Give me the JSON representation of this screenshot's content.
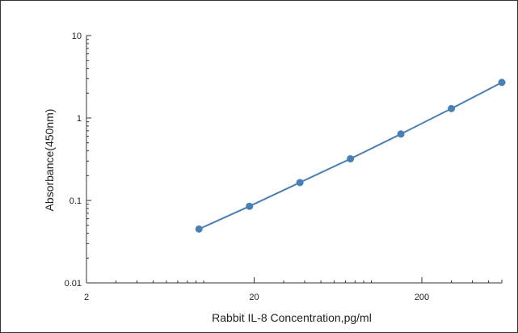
{
  "chart_data": {
    "type": "line",
    "title": "",
    "xlabel": "Rabbit IL-8 Concentration,pg/ml",
    "ylabel": "Absorbance(450nm)",
    "x_scale": "log",
    "y_scale": "log",
    "xlim": [
      2,
      600
    ],
    "ylim": [
      0.01,
      10
    ],
    "x_ticks": [
      {
        "value": 2,
        "label": "2"
      },
      {
        "value": 20,
        "label": "20"
      },
      {
        "value": 200,
        "label": "200"
      }
    ],
    "y_ticks": [
      {
        "value": 0.01,
        "label": "0.01"
      },
      {
        "value": 0.1,
        "label": "0.1"
      },
      {
        "value": 1,
        "label": "1"
      },
      {
        "value": 10,
        "label": "10"
      }
    ],
    "grid": false,
    "legend": "none",
    "line_color": "#4a7fb5",
    "series": [
      {
        "x": [
          9.375,
          18.75,
          37.5,
          75,
          150,
          300,
          600
        ],
        "values": [
          0.045,
          0.085,
          0.165,
          0.32,
          0.64,
          1.3,
          2.7
        ]
      }
    ]
  }
}
